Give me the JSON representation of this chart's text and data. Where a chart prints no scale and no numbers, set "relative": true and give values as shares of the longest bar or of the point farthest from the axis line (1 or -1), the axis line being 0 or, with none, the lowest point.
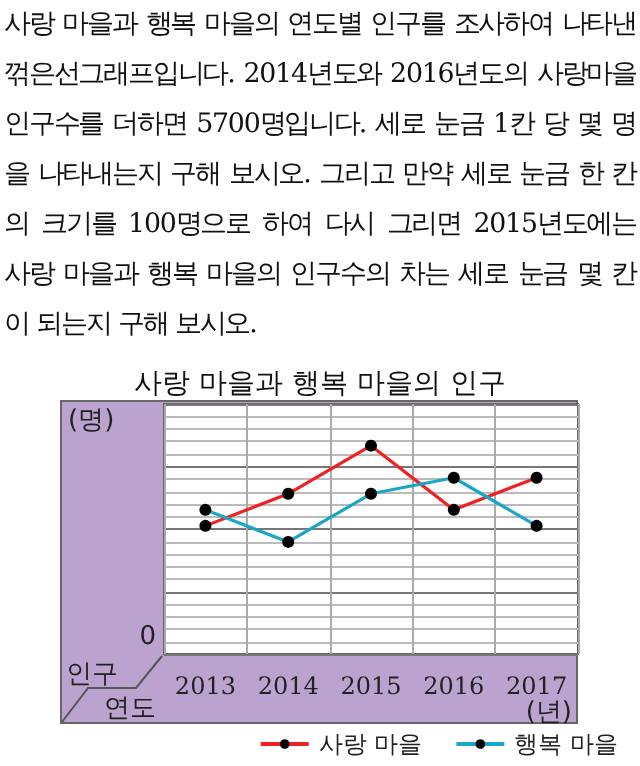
{
  "chart_data": {
    "type": "line",
    "title": "사랑 마을과 행복 마을의 인구",
    "annotations": [
      "사랑 마을과 행복 마을의 연도별 인구를 조사하여 나타낸 꺾은선그래프입니다. 2014년도와 2016년도의 사랑마을 인구수를 더하면 5700명입니다. 세로 눈금 1칸 당 몇 명을 나타내는지 구해 보시오. 그리고 만약 세로 눈금 한 칸의 크기를 100명으로 하여 다시 그리면 2015년도에는 사랑 마을과 행복 마을의 인구수의 차는 세로 눈금 몇 칸이 되는지 구해 보시오.",
      "인구",
      "연도",
      "0"
    ],
    "xlabel": "(년)",
    "ylabel": "(명)",
    "categories": [
      "2013",
      "2014",
      "2015",
      "2016",
      "2017"
    ],
    "relative": true,
    "series": [
      {
        "name": "사랑 마을",
        "color": "#ee2222",
        "values": [
          0.615,
          0.769,
          1,
          0.692,
          0.846
        ]
      },
      {
        "name": "행복 마을",
        "color": "#1aa6c4",
        "values": [
          0.692,
          0.538,
          0.769,
          0.846,
          0.615
        ]
      }
    ],
    "marker": "circle",
    "line_style": "solid",
    "grid": true,
    "legend": "bottom right"
  }
}
